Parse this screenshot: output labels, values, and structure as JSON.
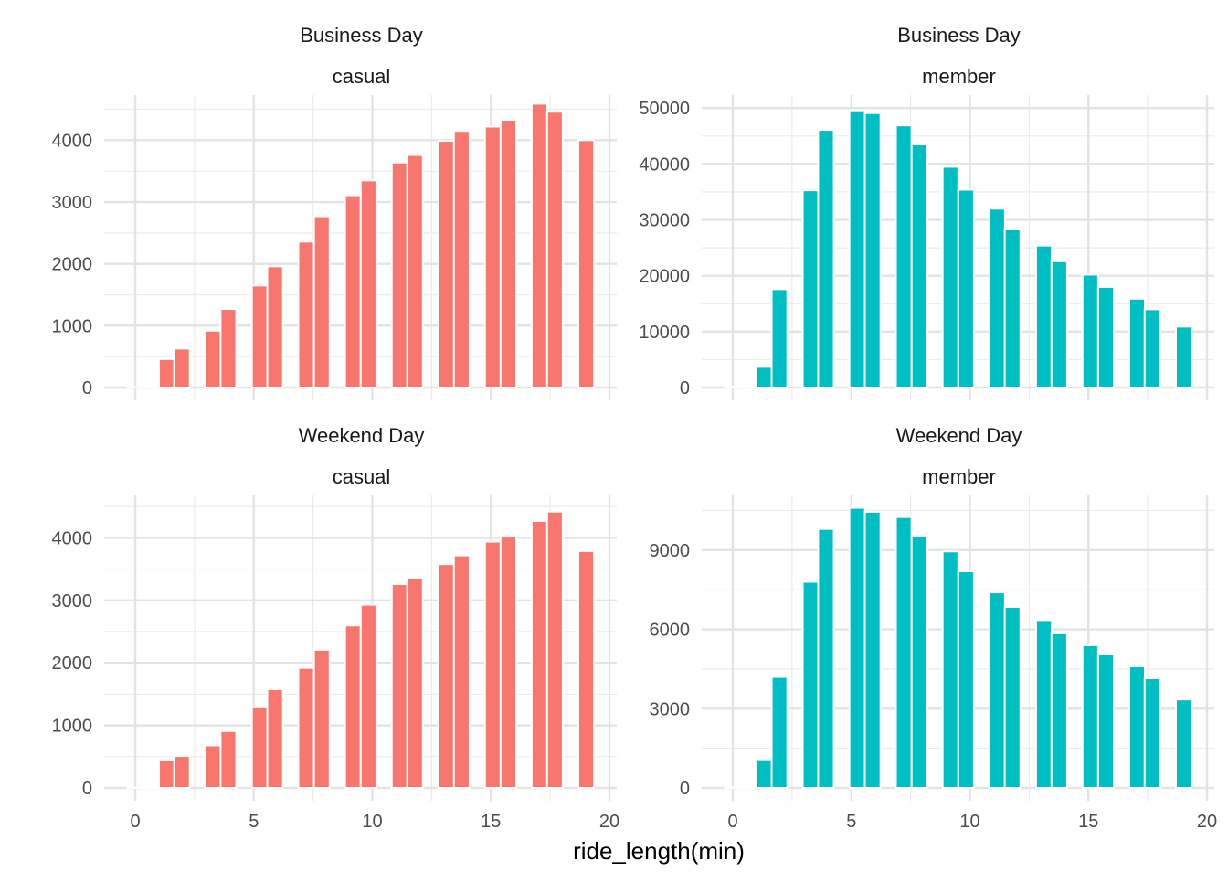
{
  "chart_data": {
    "type": "bar",
    "xlabel": "ride_length(min)",
    "ylabel": "",
    "x_axis": {
      "lim": [
        0,
        20
      ],
      "ticks": [
        0,
        5,
        10,
        15,
        20
      ],
      "tick_labels": [
        "0",
        "5",
        "10",
        "15",
        "20"
      ]
    },
    "grid": true,
    "legend": "none",
    "bin_width": 0.66,
    "panels": [
      {
        "row_label": "Business Day",
        "col_label": "casual",
        "color": "#F8766D",
        "ylim": [
          0,
          4700
        ],
        "yticks": [
          0,
          1000,
          2000,
          3000,
          4000
        ],
        "ytick_labels": [
          "0",
          "1000",
          "2000",
          "3000",
          "4000"
        ],
        "bins": [
          {
            "x": 0.0,
            "y": 5
          },
          {
            "x": 0.66,
            "y": 15
          },
          {
            "x": 1.33,
            "y": 460
          },
          {
            "x": 1.97,
            "y": 630
          },
          {
            "x": 3.28,
            "y": 920
          },
          {
            "x": 3.93,
            "y": 1270
          },
          {
            "x": 5.25,
            "y": 1650
          },
          {
            "x": 5.9,
            "y": 1960
          },
          {
            "x": 7.21,
            "y": 2360
          },
          {
            "x": 7.87,
            "y": 2770
          },
          {
            "x": 9.18,
            "y": 3110
          },
          {
            "x": 9.84,
            "y": 3350
          },
          {
            "x": 11.15,
            "y": 3640
          },
          {
            "x": 11.8,
            "y": 3760
          },
          {
            "x": 13.12,
            "y": 3990
          },
          {
            "x": 13.77,
            "y": 4150
          },
          {
            "x": 15.08,
            "y": 4220
          },
          {
            "x": 15.74,
            "y": 4330
          },
          {
            "x": 17.05,
            "y": 4590
          },
          {
            "x": 17.7,
            "y": 4460
          },
          {
            "x": 19.02,
            "y": 4000
          }
        ]
      },
      {
        "row_label": "Business Day",
        "col_label": "member",
        "color": "#00BFC4",
        "ylim": [
          0,
          52000
        ],
        "yticks": [
          0,
          10000,
          20000,
          30000,
          40000,
          50000
        ],
        "ytick_labels": [
          "0",
          "10000",
          "20000",
          "30000",
          "40000",
          "50000"
        ],
        "bins": [
          {
            "x": 0.0,
            "y": 150
          },
          {
            "x": 0.66,
            "y": 250
          },
          {
            "x": 1.33,
            "y": 3700
          },
          {
            "x": 1.97,
            "y": 17600
          },
          {
            "x": 3.28,
            "y": 35300
          },
          {
            "x": 3.93,
            "y": 46100
          },
          {
            "x": 5.25,
            "y": 49600
          },
          {
            "x": 5.9,
            "y": 49100
          },
          {
            "x": 7.21,
            "y": 46900
          },
          {
            "x": 7.87,
            "y": 43500
          },
          {
            "x": 9.18,
            "y": 39500
          },
          {
            "x": 9.84,
            "y": 35400
          },
          {
            "x": 11.15,
            "y": 32000
          },
          {
            "x": 11.8,
            "y": 28300
          },
          {
            "x": 13.12,
            "y": 25400
          },
          {
            "x": 13.77,
            "y": 22600
          },
          {
            "x": 15.08,
            "y": 20200
          },
          {
            "x": 15.74,
            "y": 18000
          },
          {
            "x": 17.05,
            "y": 15900
          },
          {
            "x": 17.7,
            "y": 14000
          },
          {
            "x": 19.02,
            "y": 10900
          }
        ]
      },
      {
        "row_label": "Weekend Day",
        "col_label": "casual",
        "color": "#F8766D",
        "ylim": [
          0,
          4650
        ],
        "yticks": [
          0,
          1000,
          2000,
          3000,
          4000
        ],
        "ytick_labels": [
          "0",
          "1000",
          "2000",
          "3000",
          "4000"
        ],
        "bins": [
          {
            "x": 0.0,
            "y": 5
          },
          {
            "x": 0.66,
            "y": 15
          },
          {
            "x": 1.33,
            "y": 440
          },
          {
            "x": 1.97,
            "y": 510
          },
          {
            "x": 3.28,
            "y": 680
          },
          {
            "x": 3.93,
            "y": 910
          },
          {
            "x": 5.25,
            "y": 1290
          },
          {
            "x": 5.9,
            "y": 1580
          },
          {
            "x": 7.21,
            "y": 1920
          },
          {
            "x": 7.87,
            "y": 2210
          },
          {
            "x": 9.18,
            "y": 2600
          },
          {
            "x": 9.84,
            "y": 2930
          },
          {
            "x": 11.15,
            "y": 3260
          },
          {
            "x": 11.8,
            "y": 3350
          },
          {
            "x": 13.12,
            "y": 3580
          },
          {
            "x": 13.77,
            "y": 3720
          },
          {
            "x": 15.08,
            "y": 3940
          },
          {
            "x": 15.74,
            "y": 4020
          },
          {
            "x": 17.05,
            "y": 4270
          },
          {
            "x": 17.7,
            "y": 4420
          },
          {
            "x": 19.02,
            "y": 3790
          }
        ]
      },
      {
        "row_label": "Weekend Day",
        "col_label": "member",
        "color": "#00BFC4",
        "ylim": [
          0,
          11000
        ],
        "yticks": [
          0,
          3000,
          6000,
          9000
        ],
        "ytick_labels": [
          "0",
          "3000",
          "6000",
          "9000"
        ],
        "bins": [
          {
            "x": 0.0,
            "y": 30
          },
          {
            "x": 0.66,
            "y": 50
          },
          {
            "x": 1.33,
            "y": 1050
          },
          {
            "x": 1.97,
            "y": 4200
          },
          {
            "x": 3.28,
            "y": 7800
          },
          {
            "x": 3.93,
            "y": 9800
          },
          {
            "x": 5.25,
            "y": 10600
          },
          {
            "x": 5.9,
            "y": 10450
          },
          {
            "x": 7.21,
            "y": 10250
          },
          {
            "x": 7.87,
            "y": 9550
          },
          {
            "x": 9.18,
            "y": 8950
          },
          {
            "x": 9.84,
            "y": 8200
          },
          {
            "x": 11.15,
            "y": 7400
          },
          {
            "x": 11.8,
            "y": 6850
          },
          {
            "x": 13.12,
            "y": 6350
          },
          {
            "x": 13.77,
            "y": 5850
          },
          {
            "x": 15.08,
            "y": 5400
          },
          {
            "x": 15.74,
            "y": 5050
          },
          {
            "x": 17.05,
            "y": 4600
          },
          {
            "x": 17.7,
            "y": 4150
          },
          {
            "x": 19.02,
            "y": 3350
          }
        ]
      }
    ]
  }
}
